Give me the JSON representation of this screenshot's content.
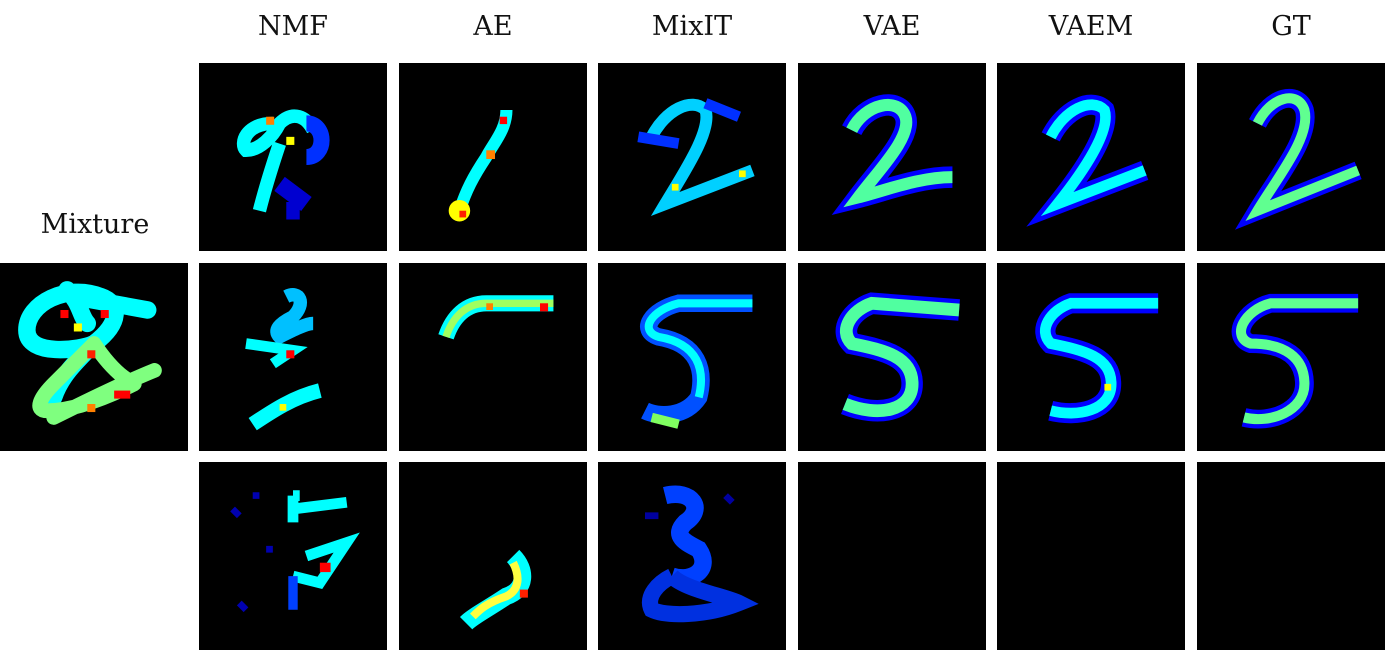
{
  "columns": [
    "NMF",
    "AE",
    "MixIT",
    "VAE",
    "VAEM",
    "GT"
  ],
  "row_label": "Mixture",
  "colormap": {
    "name": "jet",
    "background": "#000000",
    "low": "#0000ff",
    "mid": "#00ffff",
    "midhigh": "#7fff7f",
    "high": "#ffff00",
    "peak": "#ff0000"
  },
  "digits": {
    "mixture": "8",
    "row1": "2",
    "row2": "5",
    "row3_mixit": "3",
    "row3_nmf": "7"
  }
}
